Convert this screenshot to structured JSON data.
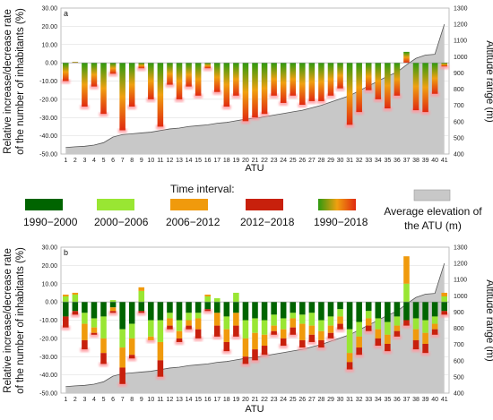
{
  "legend": {
    "title": "Time interval:",
    "items": [
      {
        "label": "1990−2000",
        "color": "#006400"
      },
      {
        "label": "2000−2006",
        "color": "#99e633"
      },
      {
        "label": "2006−2012",
        "color": "#f09a0c"
      },
      {
        "label": "2012−2018",
        "color": "#c8200c"
      },
      {
        "label": "1990−2018",
        "gradient": [
          "#e02a10",
          "#f0a010",
          "#2e9a10"
        ]
      }
    ],
    "elevation_label_1": "Average elevation of",
    "elevation_label_2": "the ATU (m)",
    "elevation_color": "#c8c8c8"
  },
  "chart_data": [
    {
      "type": "bar",
      "panel": "a",
      "xlabel": "ATU",
      "ylabel_1": "Relative increase/decrease rate",
      "ylabel_2": "of the number of inhabitants (%)",
      "y2label": "Altitude range (m)",
      "ylim": [
        -50,
        30
      ],
      "y2lim": [
        400,
        1300
      ],
      "categories": [
        "1",
        "2",
        "3",
        "4",
        "5",
        "6",
        "7",
        "8",
        "9",
        "10",
        "11",
        "12",
        "13",
        "14",
        "15",
        "16",
        "17",
        "18",
        "19",
        "20",
        "21",
        "22",
        "23",
        "24",
        "25",
        "26",
        "27",
        "28",
        "29",
        "30",
        "31",
        "32",
        "33",
        "34",
        "35",
        "36",
        "37",
        "38",
        "39",
        "40",
        "41"
      ],
      "series": [
        {
          "values": [
            -10,
            0.5,
            -24,
            -13,
            -28,
            -6,
            -37,
            -24,
            -3,
            -20,
            -35,
            -12,
            -20,
            -13,
            -18,
            -3,
            -16,
            -24,
            -18,
            -32,
            -30,
            -28,
            -18,
            -22,
            -18,
            -23,
            -21,
            -21,
            -18,
            -14,
            -34,
            -27,
            -15,
            -20,
            -25,
            -18,
            6,
            -26,
            -27,
            -17,
            -2
          ]
        },
        {
          "name": "Average elevation of the ATU (m)",
          "type": "area",
          "values": [
            440,
            445,
            448,
            455,
            470,
            505,
            520,
            525,
            530,
            535,
            545,
            555,
            560,
            570,
            575,
            580,
            590,
            595,
            605,
            615,
            620,
            630,
            640,
            650,
            660,
            670,
            685,
            700,
            720,
            740,
            760,
            790,
            820,
            850,
            880,
            905,
            950,
            990,
            1010,
            1015,
            1200
          ]
        }
      ],
      "grid": true,
      "legend_position": "between panels"
    },
    {
      "type": "bar",
      "panel": "b",
      "xlabel": "ATU",
      "ylabel_1": "Relative increase/decrease rate",
      "ylabel_2": "of the number of inhabitants (%)",
      "y2label": "Altitude range (m)",
      "ylim": [
        -50,
        30
      ],
      "y2lim": [
        400,
        1300
      ],
      "categories": [
        "1",
        "2",
        "3",
        "4",
        "5",
        "6",
        "7",
        "8",
        "9",
        "10",
        "11",
        "12",
        "13",
        "14",
        "15",
        "16",
        "17",
        "18",
        "19",
        "20",
        "21",
        "22",
        "23",
        "24",
        "25",
        "26",
        "27",
        "28",
        "29",
        "30",
        "31",
        "32",
        "33",
        "34",
        "35",
        "36",
        "37",
        "38",
        "39",
        "40",
        "41"
      ],
      "series": [
        {
          "name": "1990−2000",
          "values": [
            -8,
            -5,
            -6,
            -9,
            -8,
            -3,
            -15,
            -12,
            -5,
            -10,
            -10,
            -6,
            -10,
            -6,
            -6,
            -4,
            -6,
            -8,
            -6,
            -10,
            -9,
            -10,
            -7,
            -9,
            -6,
            -7,
            -6,
            -10,
            -8,
            -4,
            -15,
            -11,
            -5,
            -9,
            -11,
            -8,
            -10,
            -9,
            -10,
            -8,
            -5
          ]
        },
        {
          "name": "2000−2006",
          "values": [
            3,
            4,
            -6,
            -5,
            -12,
            1,
            -10,
            -8,
            6,
            -9,
            -12,
            -3,
            -6,
            -4,
            -3,
            3,
            2,
            -7,
            5,
            -10,
            -8,
            -8,
            -6,
            -6,
            -3,
            -5,
            -7,
            -6,
            -5,
            -4,
            -13,
            -8,
            -4,
            -6,
            -7,
            -5,
            10,
            -6,
            -7,
            -4,
            3
          ]
        },
        {
          "name": "2006−2012",
          "values": [
            1,
            1,
            -9,
            -3,
            -8,
            -2,
            -11,
            -9,
            2,
            -2,
            -10,
            -4,
            -4,
            -3,
            -6,
            1,
            -7,
            -7,
            -7,
            -10,
            -9,
            -6,
            -3,
            -5,
            -5,
            -9,
            -5,
            -5,
            -4,
            -4,
            -5,
            -6,
            -4,
            -5,
            -5,
            -3,
            15,
            -6,
            -6,
            -3,
            2
          ]
        },
        {
          "name": "2012−2018",
          "values": [
            -6,
            -2,
            -5,
            -1,
            -6,
            -1,
            -9,
            -2,
            -1,
            0,
            -9,
            -2,
            -2,
            -2,
            -5,
            -1,
            -6,
            -5,
            -6,
            -4,
            -6,
            -5,
            -2,
            -4,
            -4,
            -4,
            -4,
            -4,
            -3,
            -3,
            -4,
            -4,
            -3,
            -4,
            -4,
            -3,
            -3,
            -5,
            -5,
            -3,
            -2
          ]
        },
        {
          "name": "Average elevation of the ATU (m)",
          "type": "area",
          "values": [
            440,
            445,
            448,
            455,
            470,
            505,
            520,
            525,
            530,
            535,
            545,
            555,
            560,
            570,
            575,
            580,
            590,
            595,
            605,
            615,
            620,
            630,
            640,
            650,
            660,
            670,
            685,
            700,
            720,
            740,
            760,
            790,
            820,
            850,
            880,
            905,
            950,
            990,
            1010,
            1015,
            1200
          ]
        }
      ],
      "grid": true
    }
  ]
}
